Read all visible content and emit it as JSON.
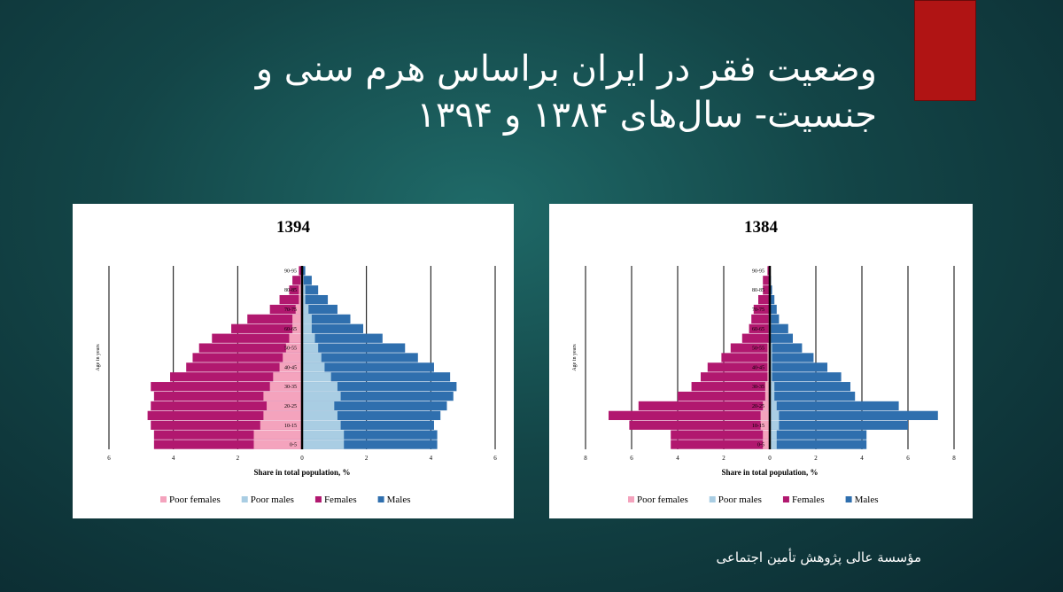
{
  "slide": {
    "title": "وضعیت فقر در ایران براساس هرم سنی و جنسیت- سال‌های ۱۳۸۴ و ۱۳۹۴",
    "footer": "مؤسسة عالی پژوهش تأمین اجتماعی"
  },
  "chart_data": [
    {
      "type": "pyramid",
      "title": "1394",
      "xlabel": "Share in total population, %",
      "ylabel": "Age in years",
      "categories": [
        "0-5",
        null,
        "10-15",
        null,
        "20-25",
        null,
        "30-35",
        null,
        "40-45",
        null,
        "50-55",
        null,
        "60-65",
        null,
        "70-75",
        null,
        "80-85",
        null,
        "90-95"
      ],
      "xlim": [
        -6,
        6
      ],
      "xticks": [
        {
          "value": -6,
          "label": "6"
        },
        {
          "value": -4,
          "label": "4"
        },
        {
          "value": -2,
          "label": "2"
        },
        0,
        2,
        4,
        6
      ],
      "grid": true,
      "legend": "bottom",
      "series": [
        {
          "name": "Poor females",
          "color": "#f4a3bd",
          "values": [
            -1.5,
            -1.5,
            -1.3,
            -1.2,
            -1.1,
            -1.2,
            -1.0,
            -0.9,
            -0.7,
            -0.6,
            -0.5,
            -0.4,
            -0.3,
            -0.3,
            -0.2,
            -0.1,
            -0.1,
            -0.05,
            0
          ]
        },
        {
          "name": "Poor males",
          "color": "#a9cde3",
          "values": [
            1.3,
            1.3,
            1.2,
            1.1,
            1.0,
            1.2,
            1.1,
            0.9,
            0.7,
            0.6,
            0.5,
            0.4,
            0.3,
            0.3,
            0.2,
            0.1,
            0.1,
            0.05,
            0
          ]
        },
        {
          "name": "Females",
          "color": "#b1186f",
          "values": [
            -4.6,
            -4.6,
            -4.7,
            -4.8,
            -4.7,
            -4.6,
            -4.7,
            -4.1,
            -3.6,
            -3.4,
            -3.2,
            -2.8,
            -2.2,
            -1.7,
            -1.0,
            -0.7,
            -0.4,
            -0.3,
            -0.1
          ]
        },
        {
          "name": "Males",
          "color": "#2f6fae",
          "values": [
            4.2,
            4.2,
            4.1,
            4.3,
            4.5,
            4.7,
            4.8,
            4.6,
            4.1,
            3.6,
            3.2,
            2.5,
            1.9,
            1.5,
            1.1,
            0.8,
            0.5,
            0.3,
            0.1
          ]
        }
      ]
    },
    {
      "type": "pyramid",
      "title": "1384",
      "xlabel": "Share in total population, %",
      "ylabel": "Age in years",
      "categories": [
        "0-5",
        null,
        "10-15",
        null,
        "20-25",
        null,
        "30-35",
        null,
        "40-45",
        null,
        "50-55",
        null,
        "60-65",
        null,
        "70-75",
        null,
        "80-85",
        null,
        "90-95"
      ],
      "xlim": [
        -8,
        8
      ],
      "xticks": [
        {
          "value": -8,
          "label": "8"
        },
        {
          "value": -6,
          "label": "6"
        },
        {
          "value": -4,
          "label": "4"
        },
        {
          "value": -2,
          "label": "2"
        },
        0,
        2,
        4,
        6,
        8
      ],
      "grid": true,
      "legend": "bottom",
      "series": [
        {
          "name": "Poor females",
          "color": "#f4a3bd",
          "values": [
            -0.3,
            -0.3,
            -0.4,
            -0.4,
            -0.3,
            -0.2,
            -0.2,
            -0.1,
            -0.1,
            -0.1,
            -0.1,
            -0.05,
            -0.05,
            -0.05,
            0,
            0,
            0,
            0,
            0
          ]
        },
        {
          "name": "Poor males",
          "color": "#a9cde3",
          "values": [
            0.3,
            0.3,
            0.4,
            0.4,
            0.3,
            0.2,
            0.2,
            0.1,
            0.1,
            0.1,
            0.1,
            0.05,
            0.05,
            0.05,
            0,
            0,
            0,
            0,
            0
          ]
        },
        {
          "name": "Females",
          "color": "#b1186f",
          "values": [
            -4.3,
            -4.3,
            -6.1,
            -7.0,
            -5.7,
            -4.0,
            -3.4,
            -3.0,
            -2.7,
            -2.1,
            -1.7,
            -1.2,
            -0.9,
            -0.8,
            -0.7,
            -0.5,
            -0.3,
            -0.3,
            -0.1
          ]
        },
        {
          "name": "Males",
          "color": "#2f6fae",
          "values": [
            4.2,
            4.2,
            6.0,
            7.3,
            5.6,
            3.7,
            3.5,
            3.1,
            2.5,
            1.9,
            1.4,
            1.0,
            0.8,
            0.4,
            0.3,
            0.2,
            0.1,
            0.05,
            0
          ]
        }
      ]
    }
  ]
}
